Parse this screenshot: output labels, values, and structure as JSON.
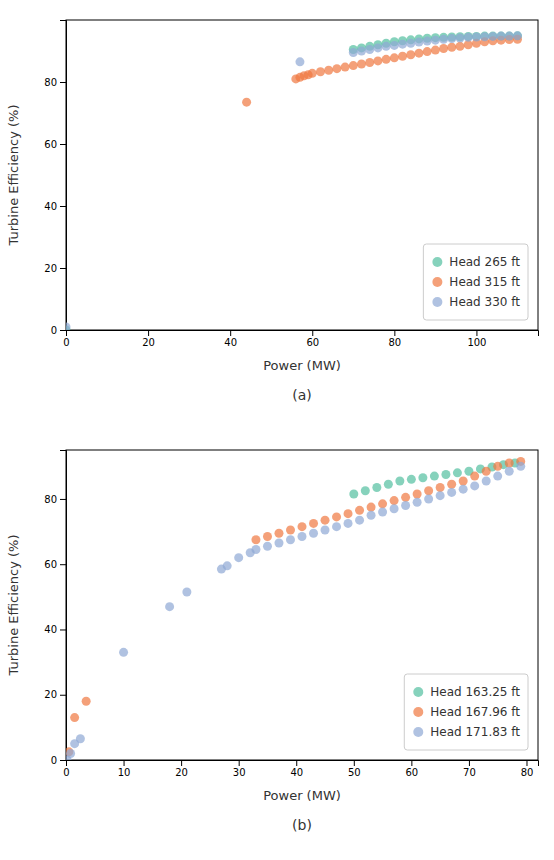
{
  "chart_data": [
    {
      "type": "scatter",
      "title": "(a)",
      "xlabel": "Power (MW)",
      "ylabel": "Turbine Efficiency (%)",
      "series": [
        {
          "name": "Head 265 ft",
          "color": "#52bfa0",
          "x": [
            0,
            70,
            72,
            74,
            76,
            78,
            80,
            82,
            84,
            86,
            88,
            90,
            92,
            94,
            96,
            98,
            100,
            102,
            104,
            106,
            108,
            110
          ],
          "values": [
            0,
            90.5,
            91.0,
            91.5,
            92.0,
            92.5,
            93.0,
            93.3,
            93.6,
            93.9,
            94.1,
            94.3,
            94.4,
            94.5,
            94.6,
            94.7,
            94.7,
            94.8,
            94.8,
            94.8,
            94.8,
            94.9
          ]
        },
        {
          "name": "Head 315 ft",
          "color": "#f07840",
          "x": [
            44,
            56,
            57,
            58,
            59,
            60,
            62,
            64,
            66,
            68,
            70,
            72,
            74,
            76,
            78,
            80,
            82,
            84,
            86,
            88,
            90,
            92,
            94,
            96,
            98,
            100,
            102,
            104,
            106,
            108,
            110
          ],
          "values": [
            73.5,
            81.0,
            81.5,
            82.0,
            82.3,
            82.8,
            83.3,
            83.8,
            84.3,
            84.8,
            85.3,
            85.8,
            86.3,
            86.8,
            87.3,
            87.8,
            88.3,
            88.8,
            89.3,
            89.8,
            90.3,
            90.8,
            91.2,
            91.5,
            92.0,
            92.5,
            93.0,
            93.3,
            93.5,
            93.7,
            93.8
          ]
        },
        {
          "name": "Head 330 ft",
          "color": "#8fa8d4",
          "x": [
            0,
            57,
            70,
            72,
            74,
            76,
            78,
            80,
            82,
            84,
            86,
            88,
            90,
            92,
            94,
            96,
            98,
            100,
            102,
            104,
            106,
            108,
            110
          ],
          "values": [
            1,
            86.5,
            89.5,
            90.0,
            90.5,
            91.0,
            91.5,
            91.8,
            92.2,
            92.5,
            92.9,
            93.2,
            93.5,
            93.8,
            94.0,
            94.2,
            94.4,
            94.5,
            94.6,
            94.7,
            94.8,
            94.8,
            94.9
          ]
        }
      ],
      "xlim": [
        0,
        115
      ],
      "ylim": [
        0,
        100
      ],
      "xticks": [
        0,
        20,
        40,
        60,
        80,
        100
      ],
      "yticks": [
        0,
        20,
        40,
        60,
        80
      ],
      "grid": false,
      "legend": "lower right"
    },
    {
      "type": "scatter",
      "title": "(b)",
      "xlabel": "Power (MW)",
      "ylabel": "Turbine Efficiency (%)",
      "series": [
        {
          "name": "Head 163.25 ft",
          "color": "#52bfa0",
          "x": [
            50,
            52,
            54,
            56,
            58,
            60,
            62,
            64,
            66,
            68,
            70,
            72,
            74,
            76,
            78
          ],
          "values": [
            81.5,
            82.5,
            83.5,
            84.5,
            85.5,
            86.0,
            86.5,
            87.0,
            87.5,
            88.0,
            88.5,
            89.2,
            89.8,
            90.5,
            91.0
          ]
        },
        {
          "name": "Head 167.96 ft",
          "color": "#f07840",
          "x": [
            0.5,
            1.5,
            3.5,
            33,
            35,
            37,
            39,
            41,
            43,
            45,
            47,
            49,
            51,
            53,
            55,
            57,
            59,
            61,
            63,
            65,
            67,
            69,
            71,
            73,
            75,
            77,
            79
          ],
          "values": [
            2.5,
            13,
            18,
            67.5,
            68.5,
            69.5,
            70.5,
            71.5,
            72.5,
            73.5,
            74.5,
            75.5,
            76.5,
            77.5,
            78.5,
            79.5,
            80.5,
            81.5,
            82.5,
            83.5,
            84.5,
            85.5,
            87.0,
            88.5,
            90.0,
            91.0,
            91.5
          ]
        },
        {
          "name": "Head 171.83 ft",
          "color": "#8fa8d4",
          "x": [
            0.2,
            0.8,
            1.5,
            2.5,
            10,
            18,
            21,
            27,
            28,
            30,
            32,
            33,
            35,
            37,
            39,
            41,
            43,
            45,
            47,
            49,
            51,
            53,
            55,
            57,
            59,
            61,
            63,
            65,
            67,
            69,
            71,
            73,
            75,
            77,
            79
          ],
          "values": [
            0,
            2,
            5,
            6.5,
            33,
            47,
            51.5,
            58.5,
            59.5,
            62,
            63.5,
            64.5,
            65.5,
            66.5,
            67.5,
            68.5,
            69.5,
            70.5,
            71.5,
            72.5,
            73.5,
            75,
            76,
            77,
            78,
            79,
            80,
            81,
            82,
            83,
            84,
            85.5,
            87,
            88.5,
            90
          ]
        }
      ],
      "xlim": [
        0,
        82
      ],
      "ylim": [
        0,
        95
      ],
      "xticks": [
        0,
        10,
        20,
        30,
        40,
        50,
        60,
        70,
        80
      ],
      "yticks": [
        0,
        20,
        40,
        60,
        80
      ],
      "grid": false,
      "legend": "lower right"
    }
  ]
}
